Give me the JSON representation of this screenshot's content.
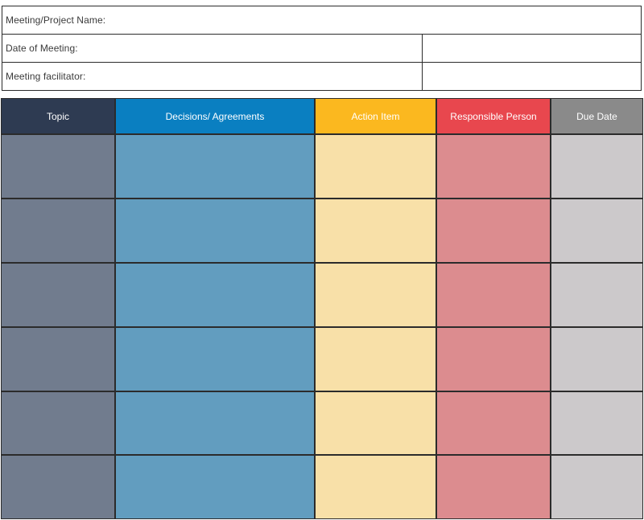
{
  "info": {
    "project_label": "Meeting/Project Name:",
    "project_value": "",
    "date_label": "Date of Meeting:",
    "date_value": "",
    "facilitator_label": "Meeting facilitator:",
    "facilitator_value": ""
  },
  "table": {
    "headers": {
      "topic": "Topic",
      "decisions": "Decisions/ Agreements",
      "action": "Action Item",
      "responsible": "Responsible Person",
      "due": "Due Date"
    },
    "colors": {
      "topic_header": "#2e3b52",
      "decisions_header": "#0a7fc1",
      "action_header": "#fbb81f",
      "responsible_header": "#e8474e",
      "due_header": "#8a8a8a",
      "topic_cell": "#717c8e",
      "decisions_cell": "#629dbf",
      "action_cell": "#f8e0a8",
      "responsible_cell": "#dc8c8f",
      "due_cell": "#ccc9cb"
    },
    "rows": [
      {
        "topic": "",
        "decisions": "",
        "action": "",
        "responsible": "",
        "due": ""
      },
      {
        "topic": "",
        "decisions": "",
        "action": "",
        "responsible": "",
        "due": ""
      },
      {
        "topic": "",
        "decisions": "",
        "action": "",
        "responsible": "",
        "due": ""
      },
      {
        "topic": "",
        "decisions": "",
        "action": "",
        "responsible": "",
        "due": ""
      },
      {
        "topic": "",
        "decisions": "",
        "action": "",
        "responsible": "",
        "due": ""
      },
      {
        "topic": "",
        "decisions": "",
        "action": "",
        "responsible": "",
        "due": ""
      }
    ]
  }
}
